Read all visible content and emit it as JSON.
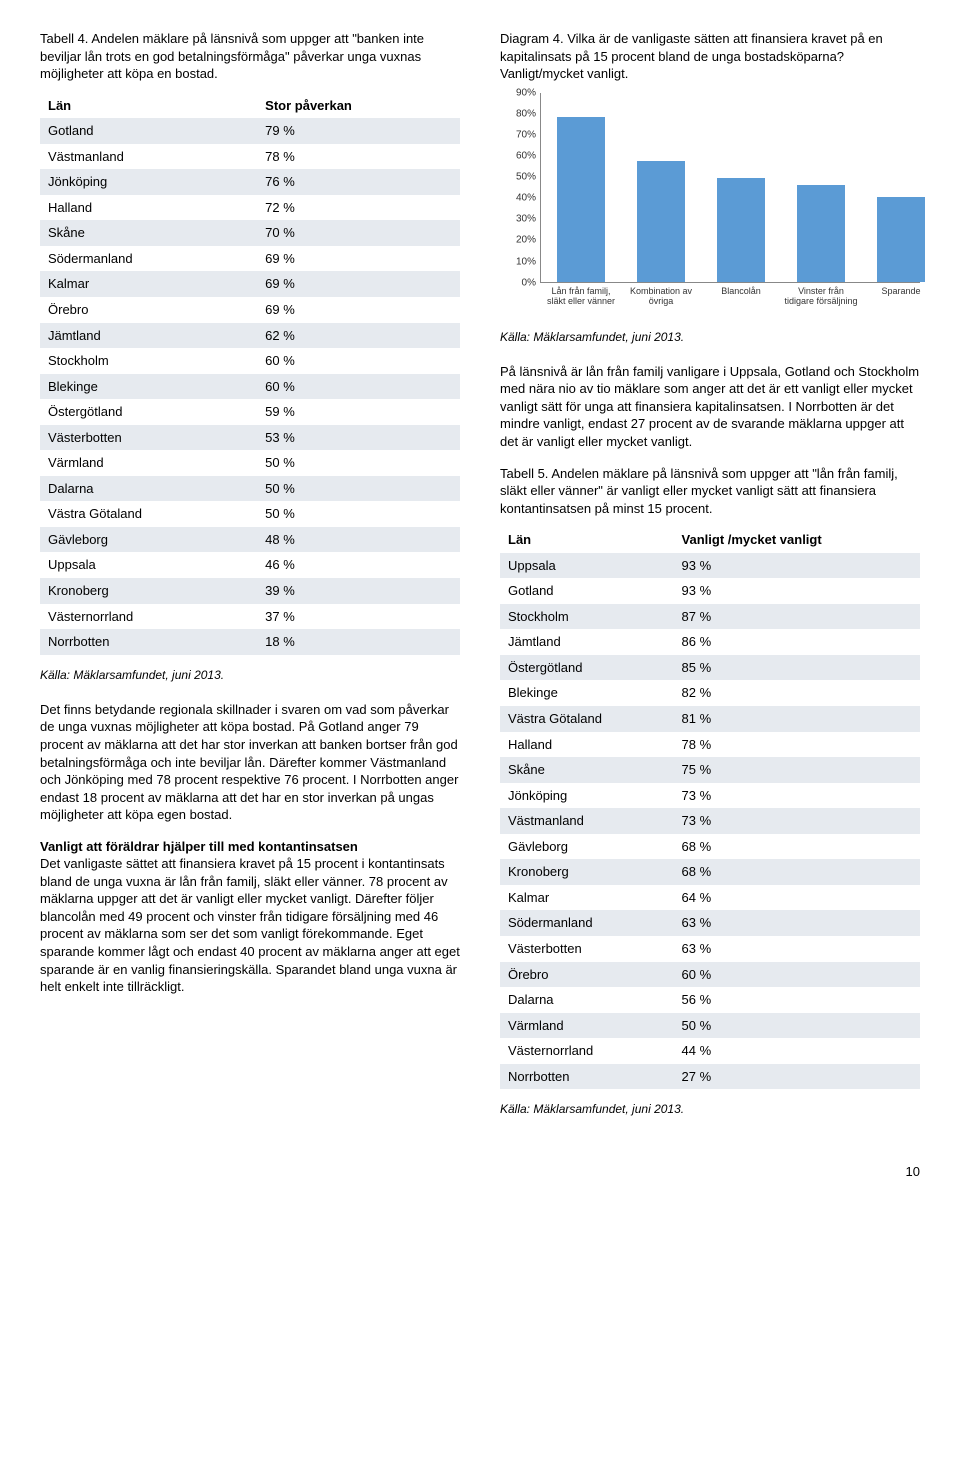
{
  "left": {
    "table4_caption": "Tabell 4. Andelen mäklare på länsnivå som uppger att \"banken inte beviljar lån trots en god betalningsförmåga\" påverkar unga vuxnas möjligheter att köpa en bostad.",
    "table4_head_col1": "Län",
    "table4_head_col2": "Stor påverkan",
    "table4_rows": [
      {
        "lan": "Gotland",
        "val": "79 %"
      },
      {
        "lan": "Västmanland",
        "val": "78 %"
      },
      {
        "lan": "Jönköping",
        "val": "76 %"
      },
      {
        "lan": "Halland",
        "val": "72 %"
      },
      {
        "lan": "Skåne",
        "val": "70 %"
      },
      {
        "lan": "Södermanland",
        "val": "69 %"
      },
      {
        "lan": "Kalmar",
        "val": "69 %"
      },
      {
        "lan": "Örebro",
        "val": "69 %"
      },
      {
        "lan": "Jämtland",
        "val": "62 %"
      },
      {
        "lan": "Stockholm",
        "val": "60 %"
      },
      {
        "lan": "Blekinge",
        "val": "60 %"
      },
      {
        "lan": "Östergötland",
        "val": "59 %"
      },
      {
        "lan": "Västerbotten",
        "val": "53 %"
      },
      {
        "lan": "Värmland",
        "val": "50 %"
      },
      {
        "lan": "Dalarna",
        "val": "50 %"
      },
      {
        "lan": "Västra Götaland",
        "val": "50 %"
      },
      {
        "lan": "Gävleborg",
        "val": "48 %"
      },
      {
        "lan": "Uppsala",
        "val": "46 %"
      },
      {
        "lan": "Kronoberg",
        "val": "39 %"
      },
      {
        "lan": "Västernorrland",
        "val": "37 %"
      },
      {
        "lan": "Norrbotten",
        "val": "18 %"
      }
    ],
    "source": "Källa: Mäklarsamfundet, juni 2013.",
    "para1": "Det finns betydande regionala skillnader i svaren om vad som påverkar de unga vuxnas möjligheter att köpa bostad. På Gotland anger 79 procent av mäklarna att det har stor inverkan att banken bortser från god betalningsförmåga och inte beviljar lån. Därefter kommer Västmanland och Jönköping med 78 procent respektive 76 procent. I Norrbotten anger endast 18 procent av mäklarna att det har en stor inverkan på ungas möjligheter att köpa egen bostad.",
    "subhead": "Vanligt att föräldrar hjälper till med kontantinsatsen",
    "para2": "Det vanligaste sättet att finansiera kravet på 15 procent i kontantinsats bland de unga vuxna är lån från familj, släkt eller vänner. 78 procent av mäklarna uppger att det är vanligt eller mycket vanligt. Därefter följer blancolån med 49 procent och vinster från tidigare försäljning med 46 procent av mäklarna som ser det som vanligt förekommande. Eget sparande kommer lågt och endast 40 procent av mäklarna anger att eget sparande är en vanlig finansieringskälla. Sparandet bland unga vuxna är helt enkelt inte tillräckligt."
  },
  "right": {
    "diagram_caption": "Diagram 4. Vilka är de vanligaste sätten att finansiera kravet på en kapitalinsats på 15 procent bland de unga bostadsköparna? Vanligt/mycket vanligt.",
    "chart": {
      "type": "bar",
      "ylim": [
        0,
        90
      ],
      "ytick_step": 10,
      "yticks": [
        "0%",
        "10%",
        "20%",
        "30%",
        "40%",
        "50%",
        "60%",
        "70%",
        "80%",
        "90%"
      ],
      "bar_color": "#5b9bd5",
      "axis_color": "#888888",
      "background": "#ffffff",
      "bars": [
        {
          "label": "Lån från familj, släkt eller vänner",
          "value": 78
        },
        {
          "label": "Kombination av övriga",
          "value": 57
        },
        {
          "label": "Blancolån",
          "value": 49
        },
        {
          "label": "Vinster från tidigare försäljning",
          "value": 46
        },
        {
          "label": "Sparande",
          "value": 40
        }
      ]
    },
    "chart_source": "Källa: Mäklarsamfundet, juni 2013.",
    "para1": "På länsnivå är lån från familj vanligare i Uppsala, Gotland och Stockholm med nära nio av tio mäklare som anger att det är ett vanligt eller mycket vanligt sätt för unga att finansiera kapitalinsatsen. I Norrbotten är det mindre vanligt, endast 27 procent av de svarande mäklarna uppger att det är vanligt eller mycket vanligt.",
    "table5_caption": "Tabell 5. Andelen mäklare på länsnivå som uppger att \"lån från familj, släkt eller vänner\" är vanligt eller mycket vanligt sätt att finansiera kontantinsatsen på minst 15 procent.",
    "table5_head_col1": "Län",
    "table5_head_col2": "Vanligt /mycket vanligt",
    "table5_rows": [
      {
        "lan": "Uppsala",
        "val": "93 %"
      },
      {
        "lan": "Gotland",
        "val": "93 %"
      },
      {
        "lan": "Stockholm",
        "val": "87 %"
      },
      {
        "lan": "Jämtland",
        "val": "86 %"
      },
      {
        "lan": "Östergötland",
        "val": "85 %"
      },
      {
        "lan": "Blekinge",
        "val": "82 %"
      },
      {
        "lan": "Västra Götaland",
        "val": "81 %"
      },
      {
        "lan": "Halland",
        "val": "78 %"
      },
      {
        "lan": "Skåne",
        "val": "75 %"
      },
      {
        "lan": "Jönköping",
        "val": "73 %"
      },
      {
        "lan": "Västmanland",
        "val": "73 %"
      },
      {
        "lan": "Gävleborg",
        "val": "68 %"
      },
      {
        "lan": "Kronoberg",
        "val": "68 %"
      },
      {
        "lan": "Kalmar",
        "val": "64 %"
      },
      {
        "lan": "Södermanland",
        "val": "63 %"
      },
      {
        "lan": "Västerbotten",
        "val": "63 %"
      },
      {
        "lan": "Örebro",
        "val": "60 %"
      },
      {
        "lan": "Dalarna",
        "val": "56 %"
      },
      {
        "lan": "Värmland",
        "val": "50 %"
      },
      {
        "lan": "Västernorrland",
        "val": "44 %"
      },
      {
        "lan": "Norrbotten",
        "val": "27 %"
      }
    ],
    "table5_source": "Källa: Mäklarsamfundet, juni 2013."
  },
  "pagenum": "10"
}
